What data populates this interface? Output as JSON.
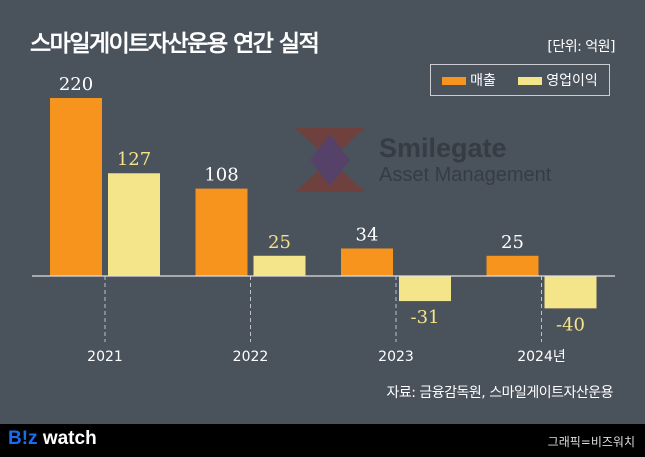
{
  "header": {
    "title": "스마일게이트자산운용 연간 실적",
    "unit": "[단위: 억원]"
  },
  "watermark": {
    "line1": "Smilegate",
    "line2": "Asset Management"
  },
  "chart_data": {
    "type": "bar",
    "title": "스마일게이트자산운용 연간 실적",
    "categories": [
      "2021",
      "2022",
      "2023",
      "2024년"
    ],
    "series": [
      {
        "name": "매출",
        "color": "#f7941d",
        "values": [
          220,
          108,
          34,
          25
        ]
      },
      {
        "name": "영업이익",
        "color": "#f4e48a",
        "values": [
          127,
          25,
          -31,
          -40
        ]
      }
    ],
    "ylabel": "억원",
    "ylim": [
      -60,
      230
    ],
    "grid": false,
    "legend": "top-right"
  },
  "source": "자료: 금융감독원, 스마일게이트자산운용",
  "footer": {
    "brand_b": "B!z",
    "brand_w": " watch",
    "credit": "그래픽=비즈워치"
  }
}
